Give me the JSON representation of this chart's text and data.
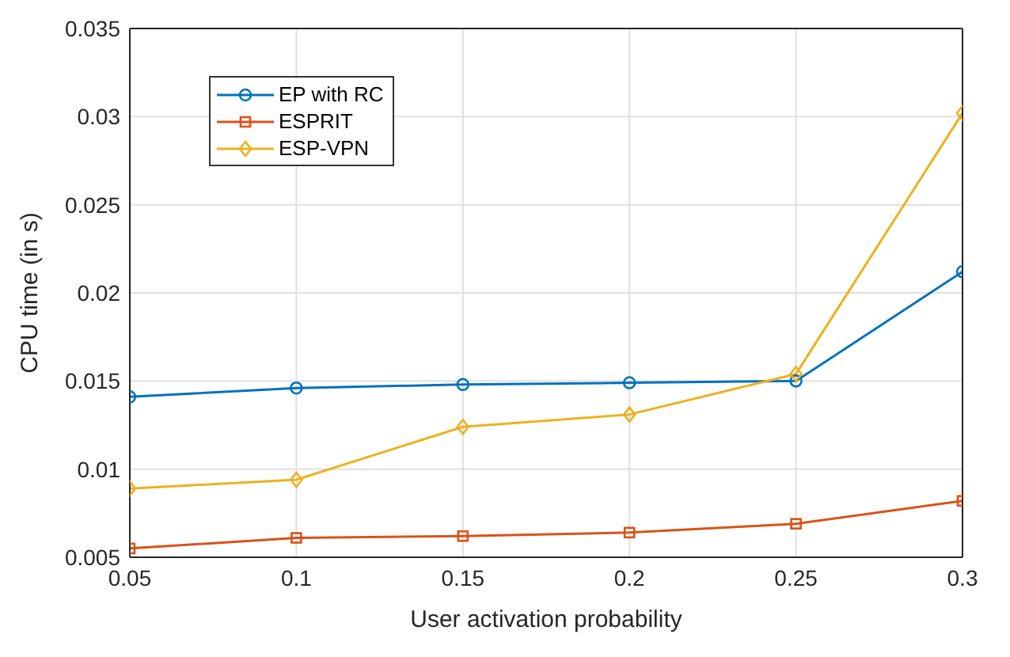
{
  "chart_data": {
    "type": "line",
    "xlabel": "User activation probability",
    "ylabel": "CPU time (in s)",
    "x": [
      0.05,
      0.1,
      0.15,
      0.2,
      0.25,
      0.3
    ],
    "series": [
      {
        "name": "EP with RC",
        "color": "#0072bd",
        "marker": "circle",
        "values": [
          0.0141,
          0.0146,
          0.0148,
          0.0149,
          0.015,
          0.0212
        ]
      },
      {
        "name": "ESPRIT",
        "color": "#d95319",
        "marker": "square",
        "values": [
          0.0055,
          0.0061,
          0.0062,
          0.0064,
          0.0069,
          0.0082
        ]
      },
      {
        "name": "ESP-VPN",
        "color": "#edb120",
        "marker": "diamond",
        "values": [
          0.0089,
          0.0094,
          0.0124,
          0.0131,
          0.0154,
          0.0302
        ]
      }
    ],
    "xlim": [
      0.05,
      0.3
    ],
    "xticks": [
      0.05,
      0.1,
      0.15,
      0.2,
      0.25,
      0.3
    ],
    "ylim": [
      0.005,
      0.035
    ],
    "yticks": [
      0.005,
      0.01,
      0.015,
      0.02,
      0.025,
      0.03,
      0.035
    ],
    "grid": true,
    "legend": "top left",
    "line_style": "solid"
  }
}
